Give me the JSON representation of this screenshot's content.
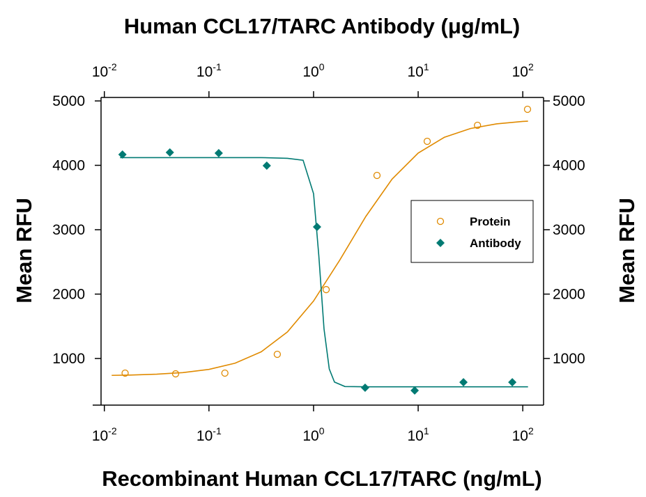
{
  "chart_data": {
    "type": "scatter",
    "title": "Human CCL17/TARC Antibody (μg/mL)",
    "x_label": "Recombinant Human CCL17/TARC (ng/mL)",
    "y_label": "Mean RFU",
    "y2_label": "Mean RFU",
    "xscale": "log",
    "xlim": [
      0.0093,
      158
    ],
    "x2lim": [
      0.0093,
      158
    ],
    "ylim": [
      276,
      5054
    ],
    "y2lim": [
      276,
      5054
    ],
    "xticks": [
      {
        "value": 0.01,
        "label": "10",
        "exponent": "-2"
      },
      {
        "value": 0.1,
        "label": "10",
        "exponent": "-1"
      },
      {
        "value": 1,
        "label": "10",
        "exponent": "0"
      },
      {
        "value": 10,
        "label": "10",
        "exponent": "1"
      },
      {
        "value": 100,
        "label": "10",
        "exponent": "2"
      }
    ],
    "x2ticks": [
      {
        "value": 0.01,
        "label": "10",
        "exponent": "-2"
      },
      {
        "value": 0.1,
        "label": "10",
        "exponent": "-1"
      },
      {
        "value": 1,
        "label": "10",
        "exponent": "0"
      },
      {
        "value": 10,
        "label": "10",
        "exponent": "1"
      },
      {
        "value": 100,
        "label": "10",
        "exponent": "2"
      }
    ],
    "yticks": [
      1000,
      2000,
      3000,
      4000,
      5000
    ],
    "y2ticks": [
      1000,
      2000,
      3000,
      4000,
      5000
    ],
    "legend": "right",
    "series": [
      {
        "name": "Protein",
        "color": "#e08a00",
        "marker": "circle",
        "xaxis": "x",
        "x": [
          0.0158,
          0.048,
          0.142,
          0.45,
          1.32,
          4.04,
          12.2,
          36.9,
          111
        ],
        "values": [
          773,
          762,
          773,
          1065,
          2070,
          3843,
          4373,
          4622,
          4870
        ],
        "fit_x": [
          0.01175,
          0.01778,
          0.03162,
          0.05623,
          0.1,
          0.1778,
          0.3162,
          0.5623,
          1,
          1.778,
          3.162,
          5.623,
          10,
          17.78,
          31.62,
          56.23,
          100,
          112.2
        ],
        "fit_values": [
          738,
          743,
          756,
          781,
          831,
          927,
          1104,
          1412,
          1893,
          2527,
          3207,
          3785,
          4190,
          4435,
          4572,
          4644,
          4682,
          4686
        ]
      },
      {
        "name": "Antibody",
        "color": "#007a73",
        "marker": "diamond",
        "xaxis": "x2",
        "x": [
          0.0149,
          0.0423,
          0.124,
          0.357,
          1.08,
          3.11,
          9.26,
          27.1,
          79.4
        ],
        "values": [
          4168,
          4200,
          4189,
          3995,
          3043,
          546,
          503,
          632,
          632
        ],
        "fit_x": [
          0.01413,
          0.03162,
          0.1,
          0.3162,
          0.5623,
          0.7943,
          1,
          1.122,
          1.259,
          1.413,
          1.585,
          1.995,
          3.162,
          10,
          31.62,
          112.2
        ],
        "fit_values": [
          4120,
          4120,
          4120,
          4120,
          4109,
          4079,
          3559,
          2601,
          1459,
          838,
          634,
          565,
          560,
          560,
          560,
          560
        ]
      }
    ]
  }
}
